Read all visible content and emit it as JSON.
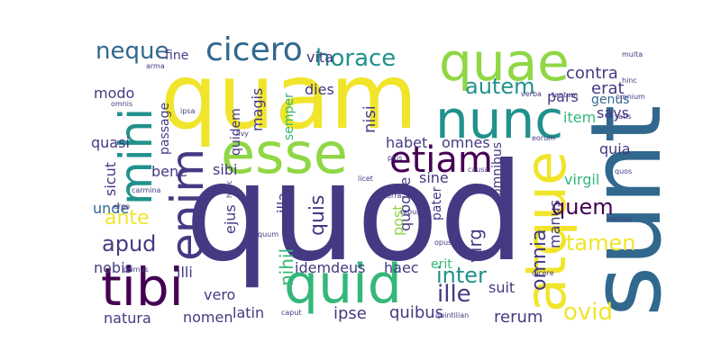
{
  "palette": {
    "yellow": "#f0e52a",
    "lime": "#8fd744",
    "green": "#35b779",
    "teal": "#21918c",
    "blue": "#31688e",
    "indigo": "#443a83",
    "purple": "#440154"
  },
  "words": [
    {
      "text": "quod",
      "color": "indigo"
    },
    {
      "text": "quam",
      "color": "yellow"
    },
    {
      "text": "sunt",
      "color": "blue"
    },
    {
      "text": "quae",
      "color": "lime"
    },
    {
      "text": "nunc",
      "color": "teal"
    },
    {
      "text": "esse",
      "color": "lime"
    },
    {
      "text": "atque",
      "color": "yellow"
    },
    {
      "text": "quid",
      "color": "green"
    },
    {
      "text": "tibi",
      "color": "purple"
    },
    {
      "text": "mihi",
      "color": "teal"
    },
    {
      "text": "enim",
      "color": "indigo"
    },
    {
      "text": "etiam",
      "color": "purple"
    },
    {
      "text": "cicero",
      "color": "blue"
    },
    {
      "text": "neque",
      "color": "blue"
    },
    {
      "text": "horace",
      "color": "teal"
    },
    {
      "text": "autem",
      "color": "teal"
    },
    {
      "text": "quem",
      "color": "purple"
    },
    {
      "text": "ille",
      "color": "indigo"
    },
    {
      "text": "inter",
      "color": "teal"
    },
    {
      "text": "ovid",
      "color": "yellow"
    },
    {
      "text": "tamen",
      "color": "yellow"
    },
    {
      "text": "apud",
      "color": "indigo"
    },
    {
      "text": "ante",
      "color": "yellow"
    },
    {
      "text": "quis",
      "color": "indigo"
    },
    {
      "text": "omnia",
      "color": "indigo"
    },
    {
      "text": "virg",
      "color": "indigo"
    },
    {
      "text": "contra",
      "color": "indigo"
    },
    {
      "text": "erat",
      "color": "indigo"
    },
    {
      "text": "genus",
      "color": "blue"
    },
    {
      "text": "pars",
      "color": "indigo"
    },
    {
      "text": "item",
      "color": "green"
    },
    {
      "text": "says",
      "color": "indigo"
    },
    {
      "text": "quia",
      "color": "indigo"
    },
    {
      "text": "virgil",
      "color": "green"
    },
    {
      "text": "nisi",
      "color": "indigo"
    },
    {
      "text": "dies",
      "color": "indigo"
    },
    {
      "text": "habet",
      "color": "indigo"
    },
    {
      "text": "omnes",
      "color": "indigo"
    },
    {
      "text": "sine",
      "color": "indigo"
    },
    {
      "text": "rerum",
      "color": "indigo"
    },
    {
      "text": "quibus",
      "color": "indigo"
    },
    {
      "text": "ipse",
      "color": "indigo"
    },
    {
      "text": "haec",
      "color": "indigo"
    },
    {
      "text": "idemdeus",
      "color": "indigo"
    },
    {
      "text": "suit",
      "color": "indigo"
    },
    {
      "text": "erit",
      "color": "green"
    },
    {
      "text": "sibi",
      "color": "indigo"
    },
    {
      "text": "bene",
      "color": "indigo"
    },
    {
      "text": "quasi",
      "color": "indigo"
    },
    {
      "text": "modo",
      "color": "indigo"
    },
    {
      "text": "unde",
      "color": "blue"
    },
    {
      "text": "nobis",
      "color": "indigo"
    },
    {
      "text": "illi",
      "color": "indigo"
    },
    {
      "text": "vero",
      "color": "indigo"
    },
    {
      "text": "natura",
      "color": "indigo"
    },
    {
      "text": "nomen",
      "color": "indigo"
    },
    {
      "text": "latin",
      "color": "indigo"
    },
    {
      "text": "nihil",
      "color": "green"
    },
    {
      "text": "illa",
      "color": "indigo"
    },
    {
      "text": "ejus",
      "color": "indigo"
    },
    {
      "text": "quidem",
      "color": "indigo"
    },
    {
      "text": "magis",
      "color": "indigo"
    },
    {
      "text": "semper",
      "color": "green"
    },
    {
      "text": "vita",
      "color": "indigo"
    },
    {
      "text": "fine",
      "color": "indigo"
    },
    {
      "text": "passage",
      "color": "indigo"
    },
    {
      "text": "sicut",
      "color": "indigo"
    },
    {
      "text": "quoque",
      "color": "indigo"
    },
    {
      "text": "post",
      "color": "lime"
    },
    {
      "text": "pater",
      "color": "indigo"
    },
    {
      "text": "omnibus",
      "color": "indigo"
    },
    {
      "text": "manus",
      "color": "indigo"
    },
    {
      "text": "arma",
      "color": "indigo"
    },
    {
      "text": "omnis",
      "color": "indigo"
    },
    {
      "text": "ipsa",
      "color": "indigo"
    },
    {
      "text": "livy",
      "color": "indigo"
    },
    {
      "text": "carmina",
      "color": "indigo"
    },
    {
      "text": "ergo",
      "color": "indigo"
    },
    {
      "text": "primus",
      "color": "indigo"
    },
    {
      "text": "dicere",
      "color": "indigo"
    },
    {
      "text": "caput",
      "color": "indigo"
    },
    {
      "text": "quintilian",
      "color": "indigo"
    },
    {
      "text": "licet",
      "color": "indigo"
    },
    {
      "text": "terra",
      "color": "indigo"
    },
    {
      "text": "rebus",
      "color": "indigo"
    },
    {
      "text": "opus",
      "color": "indigo"
    },
    {
      "text": "causa",
      "color": "indigo"
    },
    {
      "text": "plus",
      "color": "indigo"
    },
    {
      "text": "quum",
      "color": "indigo"
    },
    {
      "text": "verba",
      "color": "indigo"
    },
    {
      "text": "tantum",
      "color": "indigo"
    },
    {
      "text": "eorum",
      "color": "indigo"
    },
    {
      "text": "multa",
      "color": "indigo"
    },
    {
      "text": "hinc",
      "color": "indigo"
    },
    {
      "text": "omnium",
      "color": "indigo"
    },
    {
      "text": "satis",
      "color": "indigo"
    },
    {
      "text": "quos",
      "color": "indigo"
    },
    {
      "text": "versus",
      "color": "indigo"
    },
    {
      "text": "hunc",
      "color": "indigo"
    }
  ]
}
